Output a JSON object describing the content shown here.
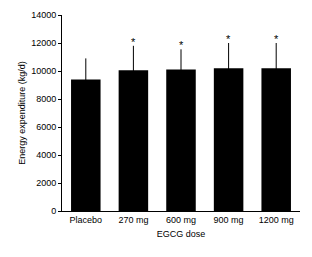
{
  "chart_data": {
    "type": "bar",
    "categories": [
      "Placebo",
      "270 mg",
      "600 mg",
      "900 mg",
      "1200 mg"
    ],
    "values": [
      9400,
      10050,
      10100,
      10200,
      10200
    ],
    "errors": [
      1500,
      1750,
      1450,
      1800,
      1800
    ],
    "color": "#000000",
    "x_label": "EGCG dose",
    "y_label": "Energy expenditure (kg/d)",
    "ylim": [
      0,
      14000
    ],
    "yticks": [
      0,
      2000,
      4000,
      6000,
      8000,
      10000,
      12000,
      14000
    ],
    "grid": false,
    "annotations": [
      {
        "x": "270 mg",
        "text": "*"
      },
      {
        "x": "600 mg",
        "text": "*"
      },
      {
        "x": "900 mg",
        "text": "*"
      },
      {
        "x": "1200 mg",
        "text": "*"
      }
    ]
  }
}
